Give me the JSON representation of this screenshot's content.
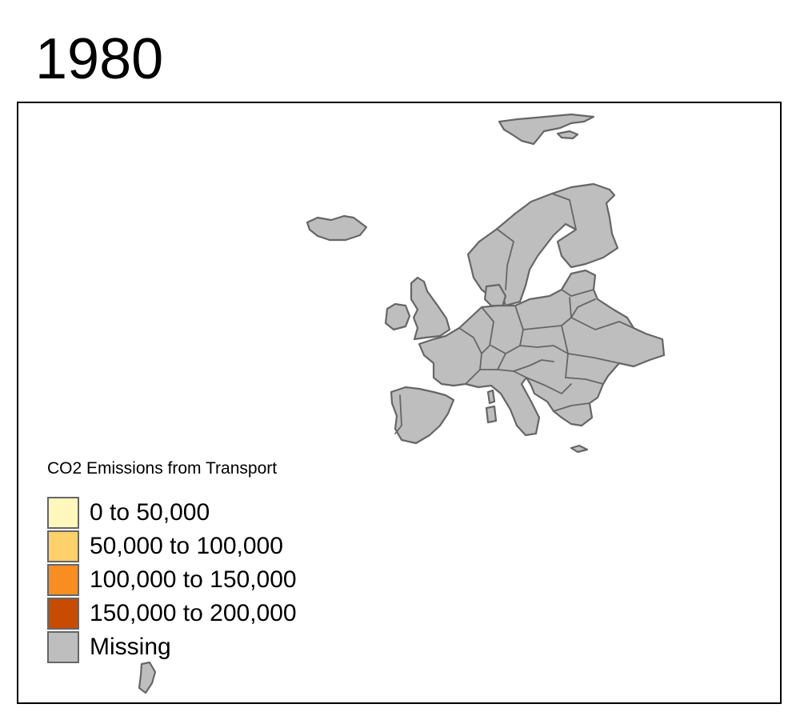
{
  "title": "1980",
  "map": {
    "region": "Europe",
    "missing_color": "#BEBEBE",
    "border_color": "#666666"
  },
  "legend": {
    "title": "CO2 Emissions from Transport",
    "items": [
      {
        "label": "0 to 50,000",
        "color": "#FFF7BC"
      },
      {
        "label": "50,000 to 100,000",
        "color": "#FED16A"
      },
      {
        "label": "100,000 to 150,000",
        "color": "#F88D22"
      },
      {
        "label": "150,000 to 200,000",
        "color": "#C84B02"
      },
      {
        "label": "Missing",
        "color": "#BEBEBE"
      }
    ]
  }
}
